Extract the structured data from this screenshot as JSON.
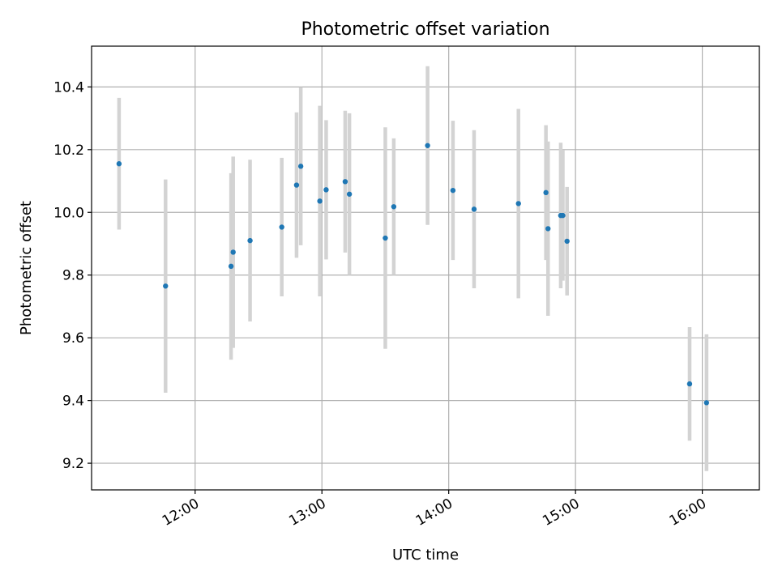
{
  "chart_data": {
    "type": "scatter",
    "title": "Photometric offset variation",
    "xlabel": "UTC time",
    "ylabel": "Photometric offset",
    "x_unit": "UTC time (HH:MM)",
    "xlim": [
      "11:11",
      "16:27"
    ],
    "ylim": [
      9.115,
      10.53
    ],
    "xticks": [
      "12:00",
      "13:00",
      "14:00",
      "15:00",
      "16:00"
    ],
    "yticks": [
      "9.2",
      "9.4",
      "9.6",
      "9.8",
      "10.0",
      "10.2",
      "10.4"
    ],
    "grid": true,
    "legend": "none",
    "point_color": "#1f77b4",
    "errorbar_color": "#d3d3d3",
    "series": [
      {
        "points": [
          {
            "x": "11:24",
            "y": 10.155,
            "ylow": 9.945,
            "yhigh": 10.365
          },
          {
            "x": "11:46",
            "y": 9.765,
            "ylow": 9.425,
            "yhigh": 10.105
          },
          {
            "x": "12:17",
            "y": 9.828,
            "ylow": 9.53,
            "yhigh": 10.125
          },
          {
            "x": "12:18",
            "y": 9.873,
            "ylow": 9.568,
            "yhigh": 10.178
          },
          {
            "x": "12:26",
            "y": 9.91,
            "ylow": 9.652,
            "yhigh": 10.168
          },
          {
            "x": "12:41",
            "y": 9.953,
            "ylow": 9.732,
            "yhigh": 10.174
          },
          {
            "x": "12:48",
            "y": 10.087,
            "ylow": 9.855,
            "yhigh": 10.319
          },
          {
            "x": "12:50",
            "y": 10.147,
            "ylow": 9.895,
            "yhigh": 10.399
          },
          {
            "x": "12:59",
            "y": 10.036,
            "ylow": 9.732,
            "yhigh": 10.34
          },
          {
            "x": "13:02",
            "y": 10.072,
            "ylow": 9.85,
            "yhigh": 10.294
          },
          {
            "x": "13:11",
            "y": 10.098,
            "ylow": 9.872,
            "yhigh": 10.324
          },
          {
            "x": "13:13",
            "y": 10.058,
            "ylow": 9.8,
            "yhigh": 10.316
          },
          {
            "x": "13:30",
            "y": 9.918,
            "ylow": 9.565,
            "yhigh": 10.271
          },
          {
            "x": "13:34",
            "y": 10.018,
            "ylow": 9.8,
            "yhigh": 10.236
          },
          {
            "x": "13:50",
            "y": 10.213,
            "ylow": 9.96,
            "yhigh": 10.466
          },
          {
            "x": "14:02",
            "y": 10.07,
            "ylow": 9.848,
            "yhigh": 10.292
          },
          {
            "x": "14:12",
            "y": 10.01,
            "ylow": 9.758,
            "yhigh": 10.262
          },
          {
            "x": "14:33",
            "y": 10.028,
            "ylow": 9.726,
            "yhigh": 10.33
          },
          {
            "x": "14:46",
            "y": 10.063,
            "ylow": 9.848,
            "yhigh": 10.278
          },
          {
            "x": "14:47",
            "y": 9.948,
            "ylow": 9.67,
            "yhigh": 10.226
          },
          {
            "x": "14:53",
            "y": 9.99,
            "ylow": 9.758,
            "yhigh": 10.222
          },
          {
            "x": "14:54",
            "y": 9.99,
            "ylow": 9.782,
            "yhigh": 10.198
          },
          {
            "x": "14:56",
            "y": 9.908,
            "ylow": 9.735,
            "yhigh": 10.081
          },
          {
            "x": "15:54",
            "y": 9.453,
            "ylow": 9.272,
            "yhigh": 9.634
          },
          {
            "x": "16:02",
            "y": 9.393,
            "ylow": 9.175,
            "yhigh": 9.611
          }
        ]
      }
    ]
  }
}
